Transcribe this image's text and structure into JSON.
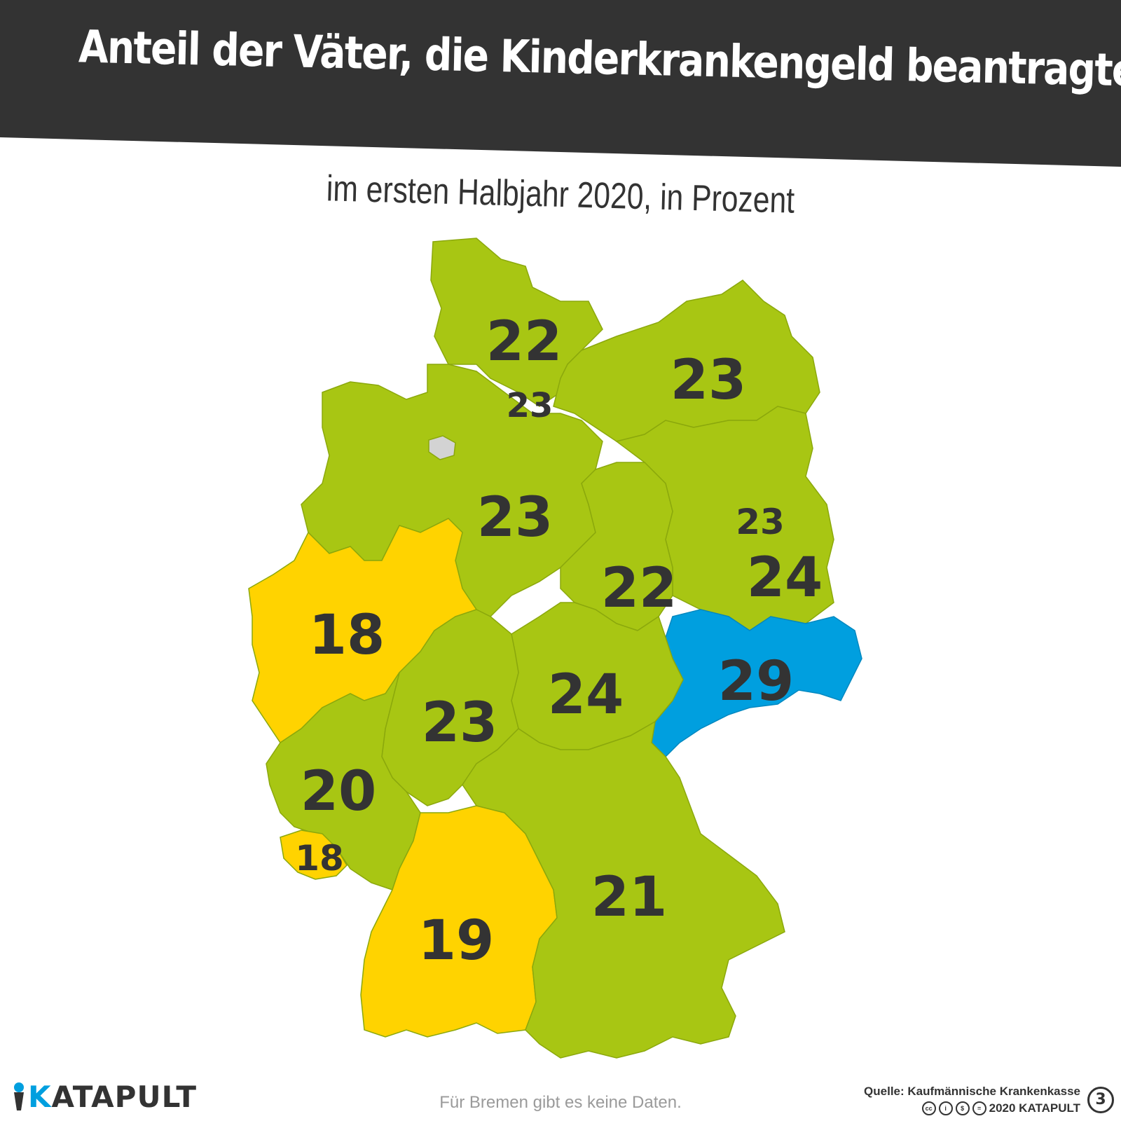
{
  "title": "Anteil der Väter, die Kinderkrankengeld beantragten",
  "subtitle": "im ersten Halbjahr 2020, in Prozent",
  "colors": {
    "banner": "#333333",
    "green": "#A8C613",
    "yellow": "#FFD300",
    "blue": "#009FDF",
    "nodata": "#D3D3D3",
    "border": "#8BA80C"
  },
  "regions": [
    {
      "name": "Schleswig-Holstein",
      "value": "22",
      "category": "green"
    },
    {
      "name": "Hamburg",
      "value": "23",
      "category": "green"
    },
    {
      "name": "Mecklenburg-Vorpommern",
      "value": "23",
      "category": "green"
    },
    {
      "name": "Niedersachsen",
      "value": "23",
      "category": "green"
    },
    {
      "name": "Bremen",
      "value": "",
      "category": "nodata"
    },
    {
      "name": "Berlin",
      "value": "23",
      "category": "green"
    },
    {
      "name": "Brandenburg",
      "value": "24",
      "category": "green"
    },
    {
      "name": "Sachsen-Anhalt",
      "value": "22",
      "category": "green"
    },
    {
      "name": "Nordrhein-Westfalen",
      "value": "18",
      "category": "yellow"
    },
    {
      "name": "Sachsen",
      "value": "29",
      "category": "blue"
    },
    {
      "name": "Thüringen",
      "value": "24",
      "category": "green"
    },
    {
      "name": "Hessen",
      "value": "23",
      "category": "green"
    },
    {
      "name": "Rheinland-Pfalz",
      "value": "20",
      "category": "green"
    },
    {
      "name": "Saarland",
      "value": "18",
      "category": "yellow"
    },
    {
      "name": "Baden-Württemberg",
      "value": "19",
      "category": "yellow"
    },
    {
      "name": "Bayern",
      "value": "21",
      "category": "green"
    }
  ],
  "logo": {
    "text": "KATAPULT",
    "icon": "katapult-icon"
  },
  "note": "Für Bremen gibt es keine Daten.",
  "source": "Quelle: Kaufmännische Krankenkasse",
  "license": "2020 KATAPULT",
  "issue_number": "3"
}
